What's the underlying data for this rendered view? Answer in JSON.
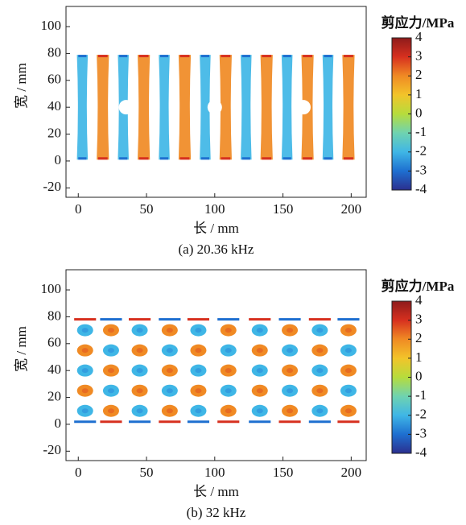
{
  "chart_data": [
    {
      "type": "field",
      "xlabel": "长 / mm",
      "ylabel": "宽 / mm",
      "caption": "(a) 20.36 kHz",
      "xlim": [
        -9,
        211
      ],
      "ylim": [
        -27,
        115
      ],
      "xticks": [
        0,
        50,
        100,
        150,
        200
      ],
      "yticks": [
        -20,
        0,
        20,
        40,
        60,
        80,
        100
      ],
      "colorbar": {
        "label": "剪应力/MPa",
        "lim": [
          -4,
          4
        ],
        "ticks": [
          -4,
          -3,
          -2,
          -1,
          0,
          1,
          2,
          3,
          4
        ],
        "colormap": [
          "#2b2f8f",
          "#1e6fd0",
          "#3fb6e6",
          "#6fd3b0",
          "#b6dc3c",
          "#f2c42a",
          "#f08a24",
          "#d7301f",
          "#8e1b1b"
        ]
      }
    },
    {
      "type": "field",
      "xlabel": "长 / mm",
      "ylabel": "宽 / mm",
      "caption": "(b) 32 kHz",
      "xlim": [
        -9,
        211
      ],
      "ylim": [
        -27,
        115
      ],
      "xticks": [
        0,
        50,
        100,
        150,
        200
      ],
      "yticks": [
        -20,
        0,
        20,
        40,
        60,
        80,
        100
      ],
      "colorbar": {
        "label": "剪应力/MPa",
        "lim": [
          -4,
          4
        ],
        "ticks": [
          -4,
          -3,
          -2,
          -1,
          0,
          1,
          2,
          3,
          4
        ],
        "colormap": [
          "#2b2f8f",
          "#1e6fd0",
          "#3fb6e6",
          "#6fd3b0",
          "#b6dc3c",
          "#f2c42a",
          "#f08a24",
          "#d7301f",
          "#8e1b1b"
        ]
      }
    }
  ]
}
